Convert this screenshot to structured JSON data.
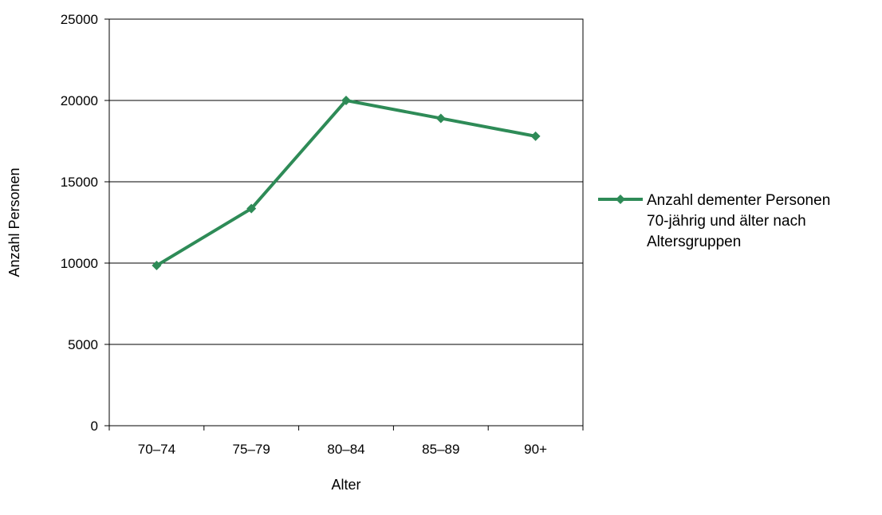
{
  "chart_data": {
    "type": "line",
    "title": "",
    "xlabel": "Alter",
    "ylabel": "Anzahl Personen",
    "categories": [
      "70–74",
      "75–79",
      "80–84",
      "85–89",
      "90+"
    ],
    "series": [
      {
        "name": "Anzahl dementer Personen 70-jährig und älter nach Altersgruppen",
        "name_lines": [
          "Anzahl dementer Personen",
          "70-jährig und älter nach",
          "Altersgruppen"
        ],
        "values": [
          9850,
          13350,
          20000,
          18900,
          17800
        ],
        "color": "#2e8b57",
        "marker": "diamond"
      }
    ],
    "ylim": [
      0,
      25000
    ],
    "yticks": [
      0,
      5000,
      10000,
      15000,
      20000,
      25000
    ],
    "grid": true,
    "legend_position": "right"
  }
}
